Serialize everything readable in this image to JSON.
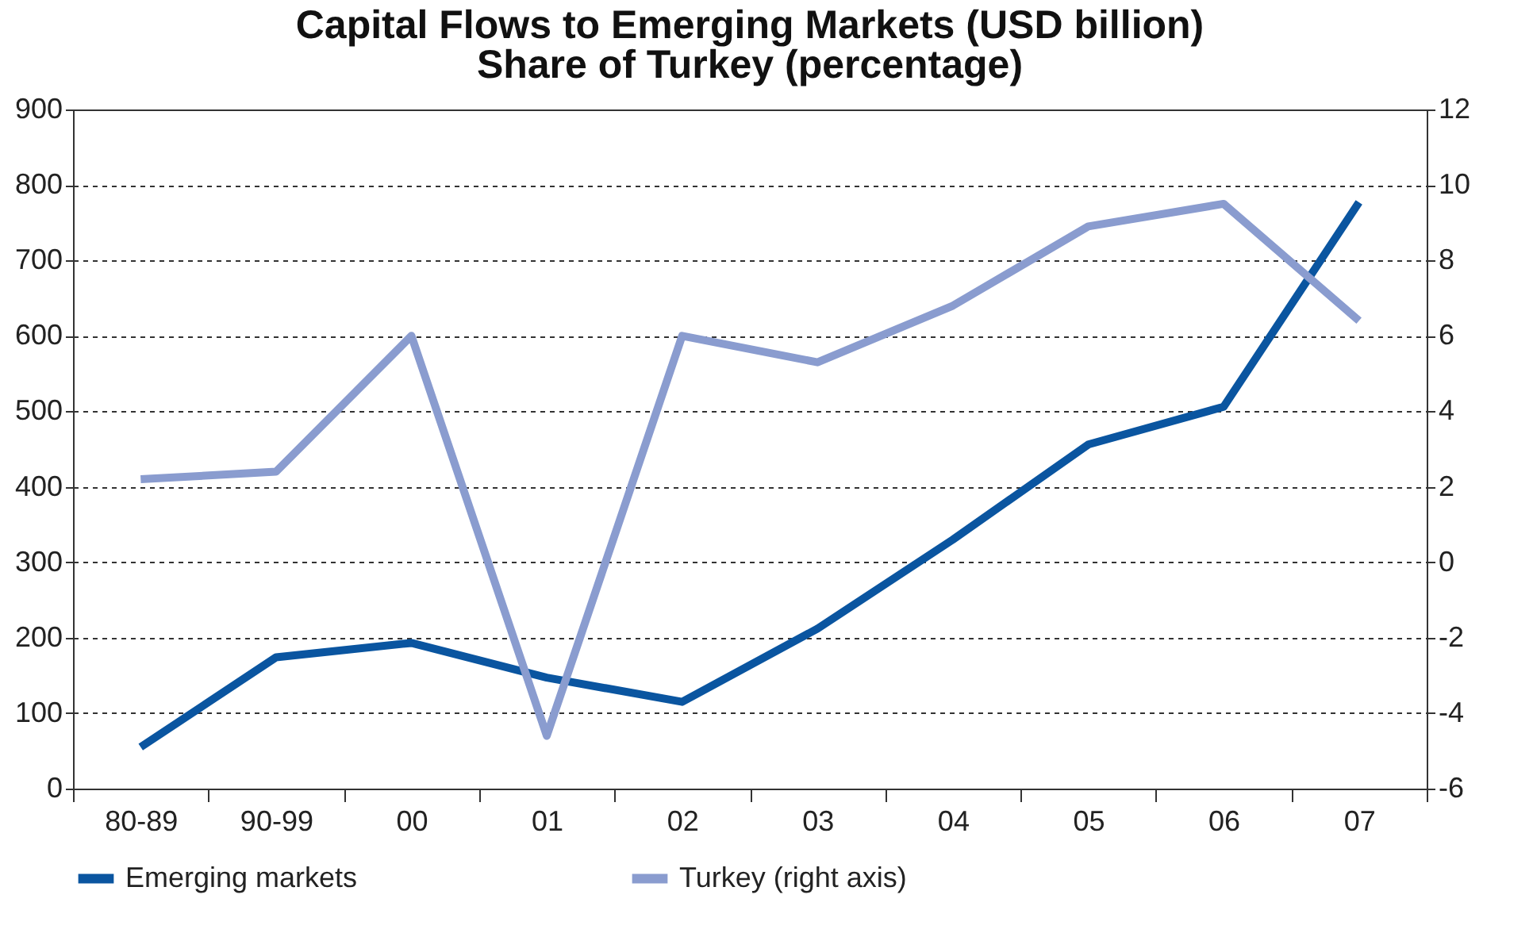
{
  "chart_data": {
    "type": "line",
    "title": "Capital Flows to Emerging Markets (USD billion)",
    "subtitle": "Share of Turkey (percentage)",
    "categories": [
      "80-89",
      "90-99",
      "00",
      "01",
      "02",
      "03",
      "04",
      "05",
      "06",
      "07"
    ],
    "series": [
      {
        "name": "Emerging markets",
        "color": "#0a55a0",
        "values": [
          55,
          174,
          193,
          147,
          115,
          212,
          330,
          456,
          506,
          777
        ]
      },
      {
        "name": "Turkey (right axis)",
        "color": "#8a9ccf",
        "axis": "y2",
        "values": [
          2.2,
          2.4,
          6.0,
          -4.6,
          6.0,
          5.3,
          6.8,
          8.9,
          9.5,
          6.4
        ]
      }
    ],
    "ylim": [
      0,
      900
    ],
    "yticks": [
      0,
      100,
      200,
      300,
      400,
      500,
      600,
      700,
      800,
      900
    ],
    "y2lim": [
      -6,
      12
    ],
    "y2ticks": [
      -6,
      -4,
      -2,
      0,
      2,
      4,
      6,
      8,
      10,
      12
    ],
    "grid": "y",
    "legend": "bottom",
    "line_style": "solid",
    "marker": "none"
  }
}
